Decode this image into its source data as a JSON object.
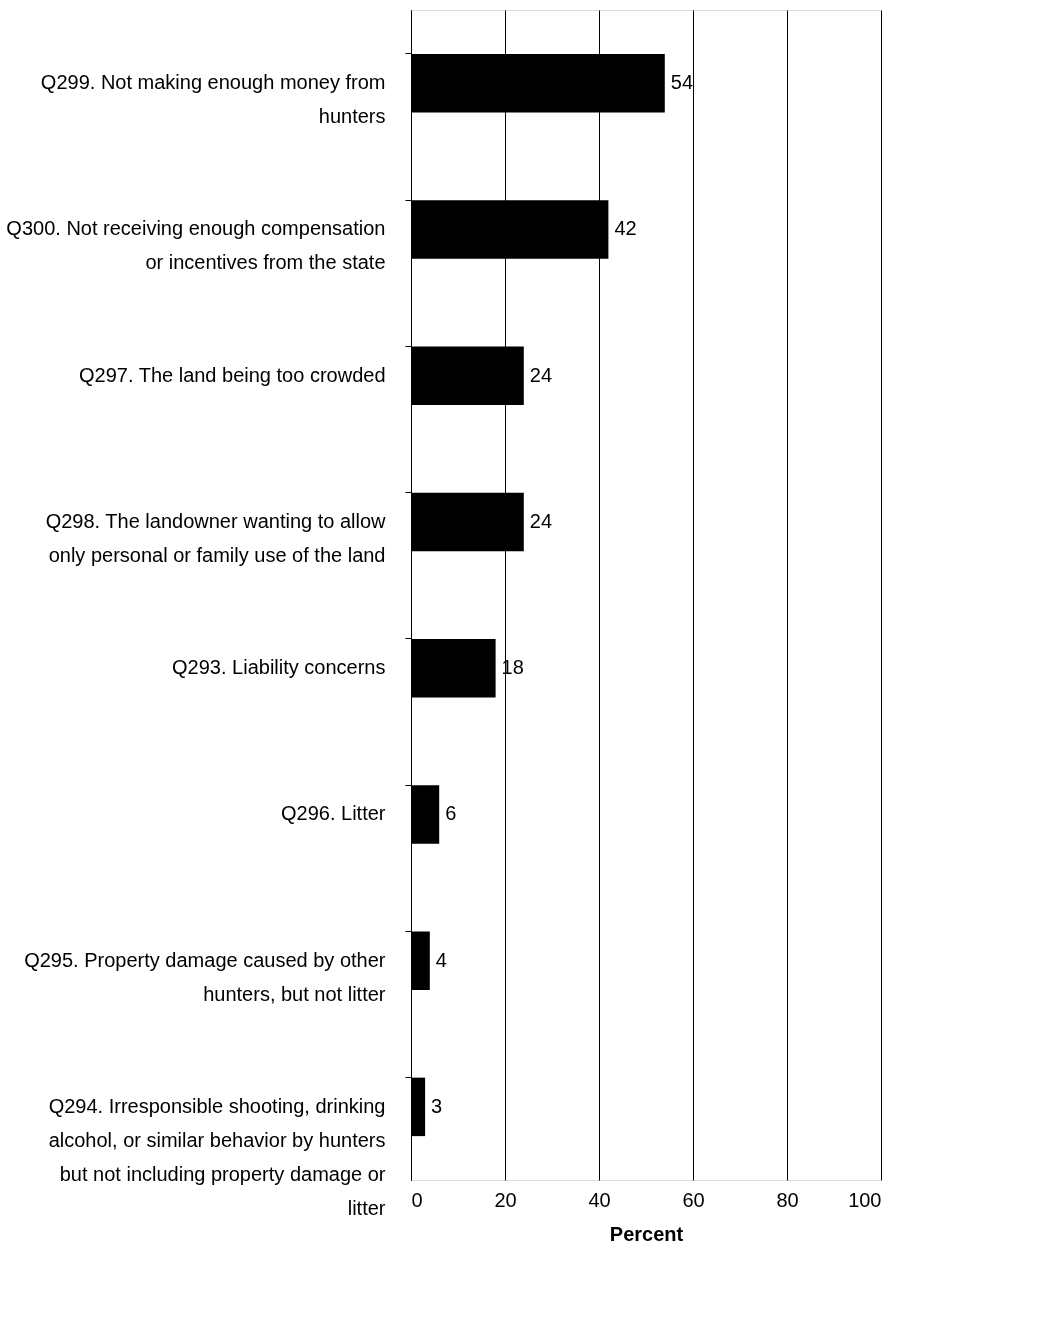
{
  "chart_data": {
    "type": "bar",
    "orientation": "horizontal",
    "xlabel": "Percent",
    "categories": [
      "Q299. Not making enough money from hunters",
      "Q300. Not receiving enough compensation or incentives from the state",
      "Q297. The land being too crowded",
      "Q298. The landowner wanting to allow only personal or family use of the land",
      "Q293. Liability concerns",
      "Q296. Litter",
      "Q295. Property damage caused by other hunters, but not litter",
      "Q294. Irresponsible shooting, drinking alcohol, or similar behavior by hunters but not including property damage or litter"
    ],
    "values": [
      54,
      42,
      24,
      24,
      18,
      6,
      4,
      3
    ],
    "color": "#000000",
    "xlim": [
      0,
      100
    ],
    "xticks": [
      0,
      20,
      40,
      60,
      80,
      100
    ],
    "grid": "x",
    "data_labels": true
  }
}
